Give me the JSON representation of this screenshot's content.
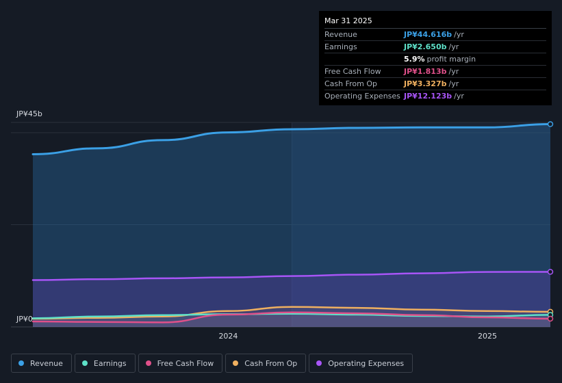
{
  "tooltip": {
    "date": "Mar 31 2025",
    "rows": [
      {
        "label": "Revenue",
        "value": "JP¥44.616b",
        "unit": "/yr",
        "color": "#3ba0e6"
      },
      {
        "label": "Earnings",
        "value": "JP¥2.650b",
        "unit": "/yr",
        "color": "#5ee0c8"
      },
      {
        "label": "",
        "value": "5.9%",
        "unit": "profit margin",
        "color": "#ffffff"
      },
      {
        "label": "Free Cash Flow",
        "value": "JP¥1.813b",
        "unit": "/yr",
        "color": "#e0508a"
      },
      {
        "label": "Cash From Op",
        "value": "JP¥3.327b",
        "unit": "/yr",
        "color": "#f0b060"
      },
      {
        "label": "Operating Expenses",
        "value": "JP¥12.123b",
        "unit": "/yr",
        "color": "#a855f7"
      }
    ]
  },
  "legend": [
    {
      "label": "Revenue",
      "color": "#3ba0e6"
    },
    {
      "label": "Earnings",
      "color": "#5ee0c8"
    },
    {
      "label": "Free Cash Flow",
      "color": "#e0508a"
    },
    {
      "label": "Cash From Op",
      "color": "#f0b060"
    },
    {
      "label": "Operating Expenses",
      "color": "#a855f7"
    }
  ],
  "chart_data": {
    "type": "area",
    "y_top_label": "JP¥45b",
    "y_zero_label": "JP¥0",
    "x_tick_labels": [
      "2024",
      "2025"
    ],
    "ylim": [
      0,
      45
    ],
    "x_range": [
      "2023-03-31",
      "2025-03-31"
    ],
    "x_ticks": [
      "2024-01-01",
      "2025-01-01"
    ],
    "highlight_start": "2024-03-31",
    "grid": true,
    "series": [
      {
        "name": "Revenue",
        "color": "#3ba0e6",
        "x": [
          "2023-03-31",
          "2023-06-30",
          "2023-09-30",
          "2023-12-31",
          "2024-03-31",
          "2024-06-30",
          "2024-09-30",
          "2024-12-31",
          "2025-03-31"
        ],
        "values": [
          38.0,
          39.3,
          41.1,
          42.8,
          43.5,
          43.8,
          43.9,
          43.9,
          44.616
        ]
      },
      {
        "name": "Operating Expenses",
        "color": "#a855f7",
        "x": [
          "2023-03-31",
          "2023-06-30",
          "2023-09-30",
          "2023-12-31",
          "2024-03-31",
          "2024-06-30",
          "2024-09-30",
          "2024-12-31",
          "2025-03-31"
        ],
        "values": [
          10.3,
          10.5,
          10.7,
          10.9,
          11.2,
          11.5,
          11.8,
          12.1,
          12.123
        ]
      },
      {
        "name": "Cash From Op",
        "color": "#f0b060",
        "x": [
          "2023-03-31",
          "2023-06-30",
          "2023-09-30",
          "2023-12-31",
          "2024-03-31",
          "2024-06-30",
          "2024-09-30",
          "2024-12-31",
          "2025-03-31"
        ],
        "values": [
          1.8,
          2.0,
          2.3,
          3.5,
          4.4,
          4.2,
          3.8,
          3.5,
          3.327
        ]
      },
      {
        "name": "Earnings",
        "color": "#5ee0c8",
        "x": [
          "2023-03-31",
          "2023-06-30",
          "2023-09-30",
          "2023-12-31",
          "2024-03-31",
          "2024-06-30",
          "2024-09-30",
          "2024-12-31",
          "2025-03-31"
        ],
        "values": [
          1.9,
          2.3,
          2.6,
          2.8,
          2.9,
          2.7,
          2.4,
          2.3,
          2.65
        ]
      },
      {
        "name": "Free Cash Flow",
        "color": "#e0508a",
        "x": [
          "2023-03-31",
          "2023-06-30",
          "2023-09-30",
          "2023-12-31",
          "2024-03-31",
          "2024-06-30",
          "2024-09-30",
          "2024-12-31",
          "2025-03-31"
        ],
        "values": [
          1.2,
          1.1,
          1.0,
          2.7,
          3.2,
          3.0,
          2.6,
          2.1,
          1.813
        ]
      }
    ]
  }
}
